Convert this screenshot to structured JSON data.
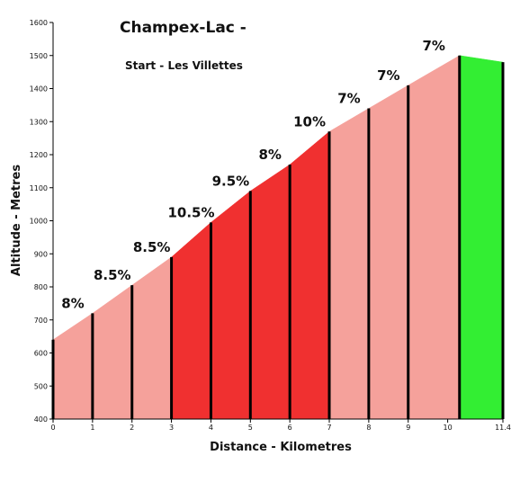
{
  "chart_data": {
    "type": "area",
    "title": "Champex-Lac -",
    "subtitle": "Start - Les Villettes",
    "xlabel": "Distance - Kilometres",
    "ylabel": "Altitude - Metres",
    "xlim": [
      0,
      11.4
    ],
    "ylim": [
      400,
      1600
    ],
    "x_ticks": [
      "0",
      "1",
      "2",
      "3",
      "4",
      "5",
      "6",
      "7",
      "8",
      "9",
      "10",
      "11.4"
    ],
    "y_ticks": [
      "400",
      "500",
      "600",
      "700",
      "800",
      "900",
      "1000",
      "1100",
      "1200",
      "1300",
      "1400",
      "1500",
      "1600"
    ],
    "colors": {
      "easy": "#f5a19b",
      "hard": "#f03030",
      "flat": "#33ee33",
      "divider": "#000000"
    },
    "segments": [
      {
        "x0": 0,
        "x1": 1,
        "y0": 640,
        "y1": 720,
        "grade": "8%",
        "level": "easy"
      },
      {
        "x0": 1,
        "x1": 2,
        "y0": 720,
        "y1": 805,
        "grade": "8.5%",
        "level": "easy"
      },
      {
        "x0": 2,
        "x1": 3,
        "y0": 805,
        "y1": 890,
        "grade": "8.5%",
        "level": "easy"
      },
      {
        "x0": 3,
        "x1": 4,
        "y0": 890,
        "y1": 995,
        "grade": "10.5%",
        "level": "hard"
      },
      {
        "x0": 4,
        "x1": 5,
        "y0": 995,
        "y1": 1090,
        "grade": "9.5%",
        "level": "hard"
      },
      {
        "x0": 5,
        "x1": 6,
        "y0": 1090,
        "y1": 1170,
        "grade": "8%",
        "level": "hard"
      },
      {
        "x0": 6,
        "x1": 7,
        "y0": 1170,
        "y1": 1270,
        "grade": "10%",
        "level": "hard"
      },
      {
        "x0": 7,
        "x1": 8,
        "y0": 1270,
        "y1": 1340,
        "grade": "7%",
        "level": "easy"
      },
      {
        "x0": 8,
        "x1": 9,
        "y0": 1340,
        "y1": 1410,
        "grade": "7%",
        "level": "easy"
      },
      {
        "x0": 9,
        "x1": 10.3,
        "y0": 1410,
        "y1": 1500,
        "grade": "7%",
        "level": "easy"
      },
      {
        "x0": 10.3,
        "x1": 11.4,
        "y0": 1500,
        "y1": 1480,
        "grade": "",
        "level": "flat"
      }
    ]
  }
}
